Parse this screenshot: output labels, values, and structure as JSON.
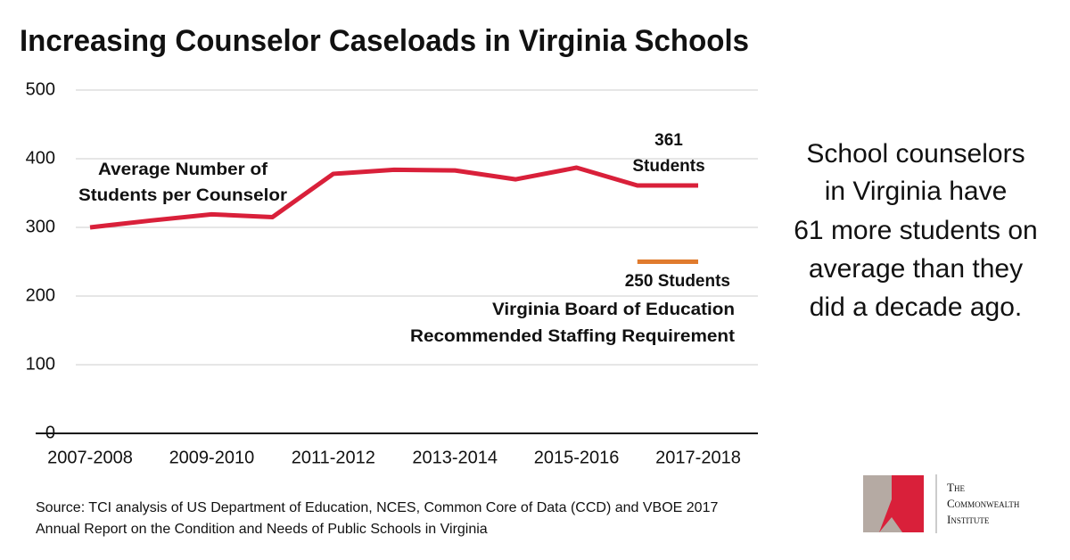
{
  "chart_data": {
    "type": "line",
    "title": "Increasing Counselor Caseloads in Virginia Schools",
    "categories": [
      "2007-2008",
      null,
      "2009-2010",
      null,
      "2011-2012",
      null,
      "2013-2014",
      null,
      "2015-2016",
      null,
      "2017-2018"
    ],
    "series": [
      {
        "color": "#d9203a",
        "values": [
          300,
          310,
          319,
          315,
          378,
          384,
          383,
          370,
          387,
          361,
          361
        ]
      },
      {
        "color": "#e07b2e",
        "values": [
          null,
          null,
          null,
          null,
          null,
          null,
          null,
          null,
          null,
          250,
          250
        ]
      }
    ],
    "ylim": [
      0,
      500
    ],
    "yticks": [
      0,
      100,
      200,
      300,
      400,
      500
    ],
    "grid": true,
    "annotations": [
      "Average Number of",
      "Students per Counselor",
      "361",
      "Students",
      "250 Students",
      "Virginia Board of Education",
      "Recommended Staffing Requirement"
    ]
  },
  "side_note": [
    "School counselors",
    "in Virginia have",
    "61 more students on",
    "average than they",
    "did a decade ago."
  ],
  "source": [
    "Source: TCI analysis of US Department of Education, NCES, Common Core of Data (CCD) and VBOE 2017",
    "Annual Report on the Condition and Needs of Public Schools in Virginia"
  ],
  "logo": [
    "The",
    "Commonwealth",
    "Institute"
  ]
}
